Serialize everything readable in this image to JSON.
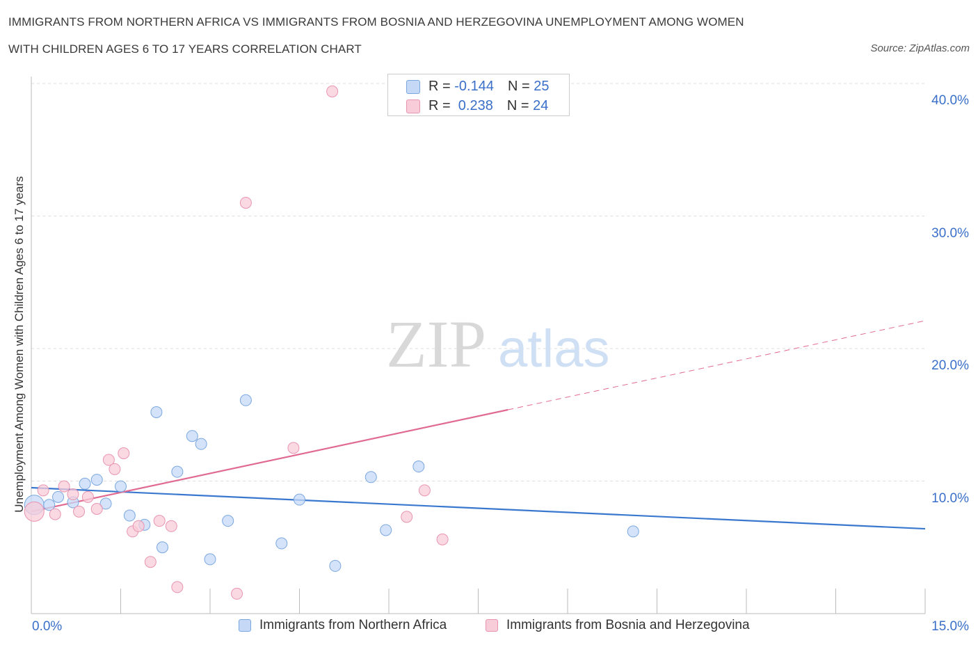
{
  "title_line1": "IMMIGRANTS FROM NORTHERN AFRICA VS IMMIGRANTS FROM BOSNIA AND HERZEGOVINA UNEMPLOYMENT AMONG WOMEN",
  "title_line2": "WITH CHILDREN AGES 6 TO 17 YEARS CORRELATION CHART",
  "source": "Source: ZipAtlas.com",
  "watermark": {
    "zip": "ZIP",
    "atlas": "atlas"
  },
  "stats": [
    {
      "r_label": "R =",
      "r_value": "-0.144",
      "n_label": "N =",
      "n_value": "25"
    },
    {
      "r_label": "R =",
      "r_value": " 0.238",
      "n_label": "N =",
      "n_value": "24"
    }
  ],
  "colors": {
    "blue_fill": "#c5d9f7",
    "blue_stroke": "#7aa7e0",
    "blue_line": "#3a78d0",
    "pink_fill": "#f8ccd9",
    "pink_stroke": "#e894b0",
    "pink_line": "#e06a92",
    "grid": "#dddddd",
    "tick_text": "#3a6fc9"
  },
  "chart_data": {
    "type": "scatter",
    "ylabel": "Unemployment Among Women with Children Ages 6 to 17 years",
    "xlim": [
      0,
      15
    ],
    "ylim": [
      0,
      40
    ],
    "x_tick_labels": [
      "0.0%",
      "15.0%"
    ],
    "y_ticks": [
      10,
      20,
      30,
      40
    ],
    "y_tick_labels": [
      "10.0%",
      "20.0%",
      "30.0%",
      "40.0%"
    ],
    "grid": true,
    "series": [
      {
        "name": "Immigrants from Northern Africa",
        "color": "blue",
        "points": [
          [
            0.05,
            8.2
          ],
          [
            0.3,
            8.2
          ],
          [
            0.45,
            8.8
          ],
          [
            0.7,
            8.4
          ],
          [
            0.9,
            9.8
          ],
          [
            1.1,
            10.1
          ],
          [
            1.25,
            8.3
          ],
          [
            1.5,
            9.6
          ],
          [
            1.65,
            7.4
          ],
          [
            1.9,
            6.7
          ],
          [
            2.1,
            15.2
          ],
          [
            2.2,
            5.0
          ],
          [
            2.45,
            10.7
          ],
          [
            2.7,
            13.4
          ],
          [
            2.85,
            12.8
          ],
          [
            3.0,
            4.1
          ],
          [
            3.3,
            7.0
          ],
          [
            3.6,
            16.1
          ],
          [
            4.2,
            5.3
          ],
          [
            4.5,
            8.6
          ],
          [
            5.1,
            3.6
          ],
          [
            5.7,
            10.3
          ],
          [
            5.95,
            6.3
          ],
          [
            6.5,
            11.1
          ],
          [
            10.1,
            6.2
          ]
        ]
      },
      {
        "name": "Immigrants from Bosnia and Herzegovina",
        "color": "pink",
        "points": [
          [
            0.05,
            7.7
          ],
          [
            0.2,
            9.3
          ],
          [
            0.4,
            7.5
          ],
          [
            0.55,
            9.6
          ],
          [
            0.7,
            9.0
          ],
          [
            0.8,
            7.7
          ],
          [
            0.95,
            8.8
          ],
          [
            1.1,
            7.9
          ],
          [
            1.3,
            11.6
          ],
          [
            1.4,
            10.9
          ],
          [
            1.55,
            12.1
          ],
          [
            1.7,
            6.2
          ],
          [
            1.8,
            6.6
          ],
          [
            2.0,
            3.9
          ],
          [
            2.15,
            7.0
          ],
          [
            2.35,
            6.6
          ],
          [
            2.45,
            2.0
          ],
          [
            3.45,
            1.5
          ],
          [
            3.6,
            31.0
          ],
          [
            4.4,
            12.5
          ],
          [
            5.05,
            39.4
          ],
          [
            6.3,
            7.3
          ],
          [
            6.6,
            9.3
          ],
          [
            6.9,
            5.6
          ]
        ]
      }
    ],
    "trendlines": [
      {
        "series": "Immigrants from Northern Africa",
        "x0": 0,
        "y0": 9.5,
        "x1": 15,
        "y1": 6.4,
        "dashed_from": null
      },
      {
        "series": "Immigrants from Bosnia and Herzegovina",
        "x0": 0,
        "y0": 7.7,
        "x1": 15,
        "y1": 22.1,
        "dashed_from": 8.0
      }
    ]
  }
}
